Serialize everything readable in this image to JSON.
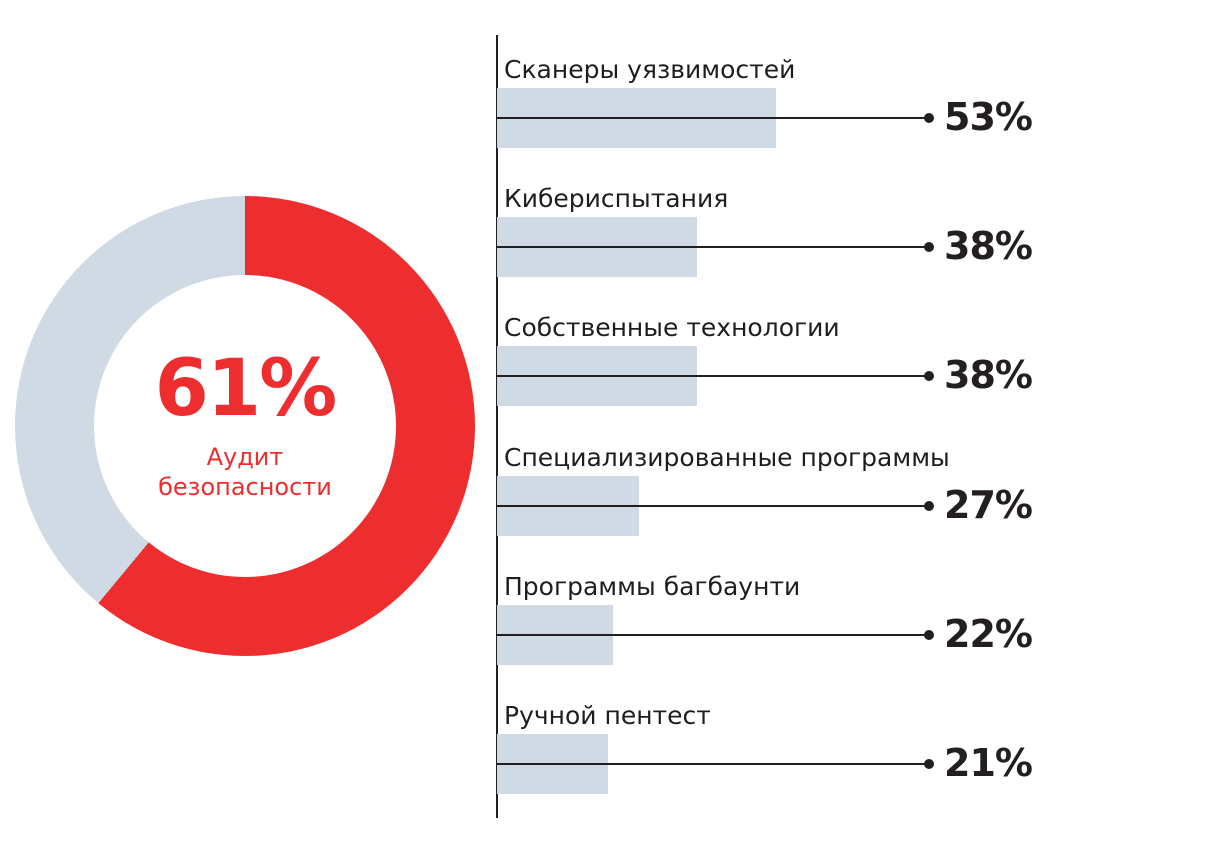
{
  "colors": {
    "accent_red": "#ED2D2E",
    "bar_fill": "#CFDAE5",
    "line_black": "#231F20",
    "text_black": "#1E1E1E",
    "background": "#FFFFFF"
  },
  "chart_data": [
    {
      "type": "pie",
      "subtype": "donut",
      "center_value": "61%",
      "center_label": "Аудит безопасности",
      "slices": [
        {
          "label": "Аудит безопасности",
          "value": 61,
          "color": "#ED2D2E"
        },
        {
          "label": "",
          "value": 39,
          "color": "#CFDAE5"
        }
      ],
      "start_angle_deg": 0,
      "direction": "clockwise",
      "legend_position": "none"
    },
    {
      "type": "bar",
      "orientation": "horizontal",
      "categories": [
        "Сканеры уязвимостей",
        "Кибериспытания",
        "Собственные технологии",
        "Специализированные программы",
        "Программы багбаунти",
        "Ручной пентест"
      ],
      "values": [
        53,
        38,
        38,
        27,
        22,
        21
      ],
      "value_labels": [
        "53%",
        "38%",
        "38%",
        "27%",
        "22%",
        "21%"
      ],
      "unit": "%",
      "bar_color": "#CFDAE5",
      "grid": false,
      "legend_position": "none"
    }
  ]
}
